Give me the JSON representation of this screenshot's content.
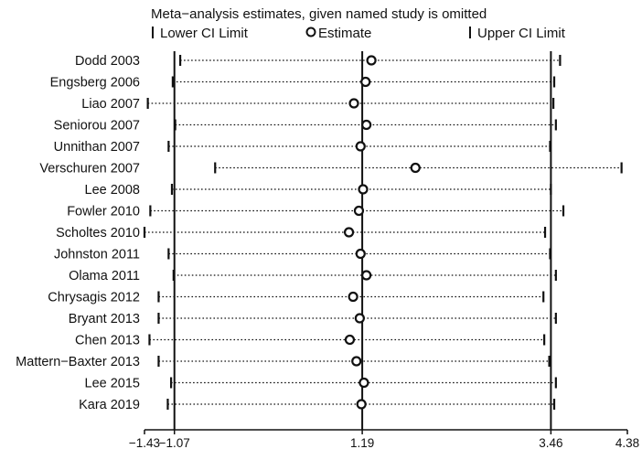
{
  "chart_data": {
    "type": "scatter",
    "title": "Meta−analysis estimates, given named study is omitted",
    "legend": {
      "position": "top",
      "lower_label": "Lower CI Limit",
      "estimate_label": "Estimate",
      "upper_label": "Upper CI Limit"
    },
    "x_ticks": [
      "−1.43",
      "−1.07",
      "1.19",
      "3.46",
      "4.38"
    ],
    "x_tick_values": [
      -1.43,
      -1.07,
      1.19,
      3.46,
      4.38
    ],
    "xlim": [
      -1.43,
      4.38
    ],
    "reference_lines": [
      -1.07,
      1.19,
      3.46
    ],
    "grid": false,
    "studies": [
      {
        "label": "Dodd 2003",
        "lower": -1.0,
        "estimate": 1.3,
        "upper": 3.57
      },
      {
        "label": "Engsberg 2006",
        "lower": -1.09,
        "estimate": 1.23,
        "upper": 3.5
      },
      {
        "label": "Liao 2007",
        "lower": -1.39,
        "estimate": 1.09,
        "upper": 3.49
      },
      {
        "label": "Seniorou 2007",
        "lower": -1.06,
        "estimate": 1.24,
        "upper": 3.52
      },
      {
        "label": "Unnithan 2007",
        "lower": -1.14,
        "estimate": 1.17,
        "upper": 3.45
      },
      {
        "label": "Verschuren 2007",
        "lower": -0.58,
        "estimate": 1.83,
        "upper": 4.31
      },
      {
        "label": "Lee 2008",
        "lower": -1.1,
        "estimate": 1.2,
        "upper": 3.46
      },
      {
        "label": "Fowler 2010",
        "lower": -1.36,
        "estimate": 1.15,
        "upper": 3.61
      },
      {
        "label": "Scholtes 2010",
        "lower": -1.43,
        "estimate": 1.03,
        "upper": 3.39
      },
      {
        "label": "Johnston 2011",
        "lower": -1.14,
        "estimate": 1.17,
        "upper": 3.45
      },
      {
        "label": "Olama 2011",
        "lower": -1.08,
        "estimate": 1.24,
        "upper": 3.52
      },
      {
        "label": "Chrysagis 2012",
        "lower": -1.26,
        "estimate": 1.08,
        "upper": 3.37
      },
      {
        "label": "Bryant 2013",
        "lower": -1.26,
        "estimate": 1.16,
        "upper": 3.52
      },
      {
        "label": "Chen 2013",
        "lower": -1.37,
        "estimate": 1.04,
        "upper": 3.38
      },
      {
        "label": "Mattern−Baxter 2013",
        "lower": -1.26,
        "estimate": 1.12,
        "upper": 3.44
      },
      {
        "label": "Lee 2015",
        "lower": -1.11,
        "estimate": 1.21,
        "upper": 3.52
      },
      {
        "label": "Kara 2019",
        "lower": -1.15,
        "estimate": 1.18,
        "upper": 3.5
      }
    ]
  }
}
